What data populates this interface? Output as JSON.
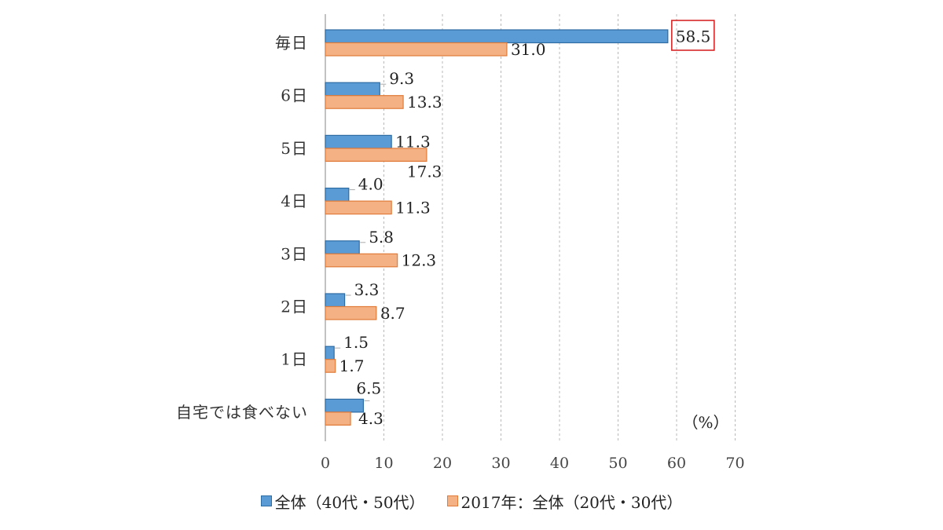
{
  "chart_data": {
    "type": "bar",
    "orientation": "horizontal",
    "categories": [
      "毎日",
      "6日",
      "5日",
      "4日",
      "3日",
      "2日",
      "1日",
      "自宅では食べない"
    ],
    "series": [
      {
        "name": "全体（40代・50代）",
        "values": [
          58.5,
          9.3,
          11.3,
          4.0,
          5.8,
          3.3,
          1.5,
          6.5
        ],
        "labels": [
          "58.5",
          "9.3",
          "11.3",
          "4.0",
          "5.8",
          "3.3",
          "1.5",
          "6.5"
        ],
        "color": "#5b9bd5",
        "border": "#2e6ca4"
      },
      {
        "name": "2017年：全体（20代・30代）",
        "values": [
          31.0,
          13.3,
          17.3,
          11.3,
          12.3,
          8.7,
          1.7,
          4.3
        ],
        "labels": [
          "31.0",
          "13.3",
          "17.3",
          "11.3",
          "12.3",
          "8.7",
          "1.7",
          "4.3"
        ],
        "color": "#f4b183",
        "border": "#e07b39"
      }
    ],
    "xlim": [
      0,
      70
    ],
    "xticks": [
      "0",
      "10",
      "20",
      "30",
      "40",
      "50",
      "60",
      "70"
    ],
    "unit_label": "（%）",
    "grid": "vertical-dashed",
    "legend_position": "bottom",
    "highlight": {
      "series": 0,
      "category": 0,
      "color": "#d62728"
    }
  }
}
